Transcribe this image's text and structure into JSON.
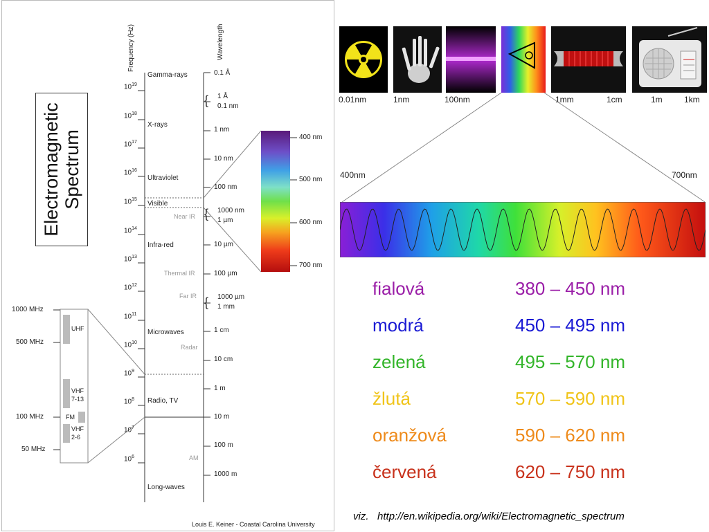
{
  "left_panel": {
    "title_line1": "Electromagnetic",
    "title_line2": "Spectrum",
    "axis_frequency": "Frequency (Hz)",
    "axis_wavelength": "Wavelength",
    "frequency_ticks": [
      {
        "base": "10",
        "exp": "19"
      },
      {
        "base": "10",
        "exp": "18"
      },
      {
        "base": "10",
        "exp": "17"
      },
      {
        "base": "10",
        "exp": "16"
      },
      {
        "base": "10",
        "exp": "15"
      },
      {
        "base": "10",
        "exp": "14"
      },
      {
        "base": "10",
        "exp": "13"
      },
      {
        "base": "10",
        "exp": "12"
      },
      {
        "base": "10",
        "exp": "11"
      },
      {
        "base": "10",
        "exp": "10"
      },
      {
        "base": "10",
        "exp": "9"
      },
      {
        "base": "10",
        "exp": "8"
      },
      {
        "base": "10",
        "exp": "7"
      },
      {
        "base": "10",
        "exp": "6"
      }
    ],
    "bands": {
      "gamma": "Gamma-rays",
      "xrays": "X-rays",
      "uv": "Ultraviolet",
      "visible": "Visible",
      "near_ir": "Near IR",
      "infrared": "Infra-red",
      "thermal_ir": "Thermal IR",
      "far_ir": "Far IR",
      "microwaves": "Microwaves",
      "radar": "Radar",
      "radio": "Radio, TV",
      "am": "AM",
      "longwaves": "Long-waves"
    },
    "wavelengths": {
      "w1": "0.1 Å",
      "w2a": "1 Å",
      "w2b": "0.1 nm",
      "w3": "1 nm",
      "w4": "10 nm",
      "w5": "100 nm",
      "w6a": "1000 nm",
      "w6b": "1 µm",
      "w7": "10 µm",
      "w8": "100 µm",
      "w9a": "1000 µm",
      "w9b": "1 mm",
      "w10": "1 cm",
      "w11": "10 cm",
      "w12": "1 m",
      "w13": "10 m",
      "w14": "100 m",
      "w15": "1000 m"
    },
    "visible_scale": [
      "400 nm",
      "500 nm",
      "600 nm",
      "700 nm"
    ],
    "radio_scale": {
      "ticks": [
        "1000 MHz",
        "500 MHz",
        "100 MHz",
        "50 MHz"
      ],
      "uhf": "UHF",
      "vhf1": "VHF",
      "vhf1b": "7-13",
      "fm": "FM",
      "vhf2": "VHF",
      "vhf2b": "2-6"
    },
    "credit": "Louis E. Keiner - Coastal Carolina University"
  },
  "top_strip": {
    "labels": [
      "0.01nm",
      "1nm",
      "100nm",
      "1mm",
      "1cm",
      "1m",
      "1km"
    ],
    "icons": [
      "radiation-icon",
      "xray-hand-icon",
      "uv-lamp-icon",
      "prism-icon",
      "laser-icon",
      "radio-icon"
    ]
  },
  "spectrum": {
    "left_label": "400nm",
    "right_label": "700nm"
  },
  "colors_table": [
    {
      "name": "fialová",
      "range": "380 – 450 nm",
      "color": "#9b1fa8"
    },
    {
      "name": "modrá",
      "range": "450 – 495 nm",
      "color": "#1a1ad4"
    },
    {
      "name": "zelená",
      "range": "495 – 570 nm",
      "color": "#33b52a"
    },
    {
      "name": "žlutá",
      "range": "570 – 590 nm",
      "color": "#f0c419"
    },
    {
      "name": "oranžová",
      "range": "590 – 620 nm",
      "color": "#ee8a1a"
    },
    {
      "name": "červená",
      "range": "620 – 750 nm",
      "color": "#c8321c"
    }
  ],
  "footer": {
    "prefix": "viz.",
    "url": "http://en.wikipedia.org/wiki/Electromagnetic_spectrum"
  }
}
